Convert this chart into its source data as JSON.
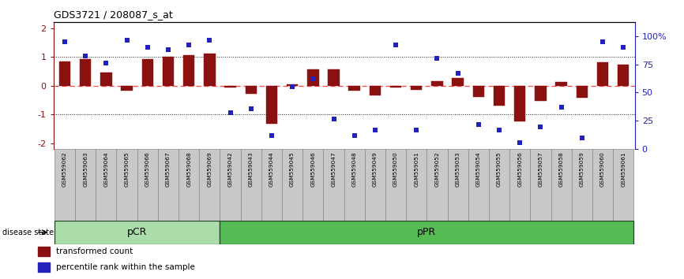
{
  "title": "GDS3721 / 208087_s_at",
  "samples": [
    "GSM559062",
    "GSM559063",
    "GSM559064",
    "GSM559065",
    "GSM559066",
    "GSM559067",
    "GSM559068",
    "GSM559069",
    "GSM559042",
    "GSM559043",
    "GSM559044",
    "GSM559045",
    "GSM559046",
    "GSM559047",
    "GSM559048",
    "GSM559049",
    "GSM559050",
    "GSM559051",
    "GSM559052",
    "GSM559053",
    "GSM559054",
    "GSM559055",
    "GSM559056",
    "GSM559057",
    "GSM559058",
    "GSM559059",
    "GSM559060",
    "GSM559061"
  ],
  "bar_values": [
    0.85,
    0.92,
    0.45,
    -0.18,
    0.93,
    1.0,
    1.06,
    1.12,
    -0.05,
    -0.28,
    -1.32,
    0.06,
    0.58,
    0.58,
    -0.18,
    -0.32,
    -0.06,
    -0.14,
    0.16,
    0.27,
    -0.4,
    -0.68,
    -1.22,
    -0.52,
    0.12,
    -0.42,
    0.82,
    0.73
  ],
  "scatter_values": [
    95,
    82,
    76,
    96,
    90,
    88,
    92,
    96,
    32,
    36,
    12,
    55,
    62,
    27,
    12,
    17,
    92,
    17,
    80,
    67,
    22,
    17,
    6,
    20,
    37,
    10,
    95,
    90
  ],
  "pcr_count": 8,
  "bar_color": "#8B1010",
  "scatter_color": "#2222BB",
  "zero_line_color": "#FF4444",
  "dot_line_color": "#222222",
  "pcr_color": "#aaddaa",
  "ppr_color": "#55bb55",
  "group_border_color": "#336633",
  "ylim": [
    -2.2,
    2.2
  ],
  "y2lim": [
    0,
    112
  ],
  "yticks_left": [
    -2,
    -1,
    0,
    1,
    2
  ],
  "yticks_right": [
    0,
    25,
    50,
    75,
    100
  ],
  "ytick_labels_right": [
    "0",
    "25",
    "50",
    "75",
    "100%"
  ],
  "cell_bg": "#C8C8C8",
  "cell_border": "#888888",
  "bar_width": 0.55
}
